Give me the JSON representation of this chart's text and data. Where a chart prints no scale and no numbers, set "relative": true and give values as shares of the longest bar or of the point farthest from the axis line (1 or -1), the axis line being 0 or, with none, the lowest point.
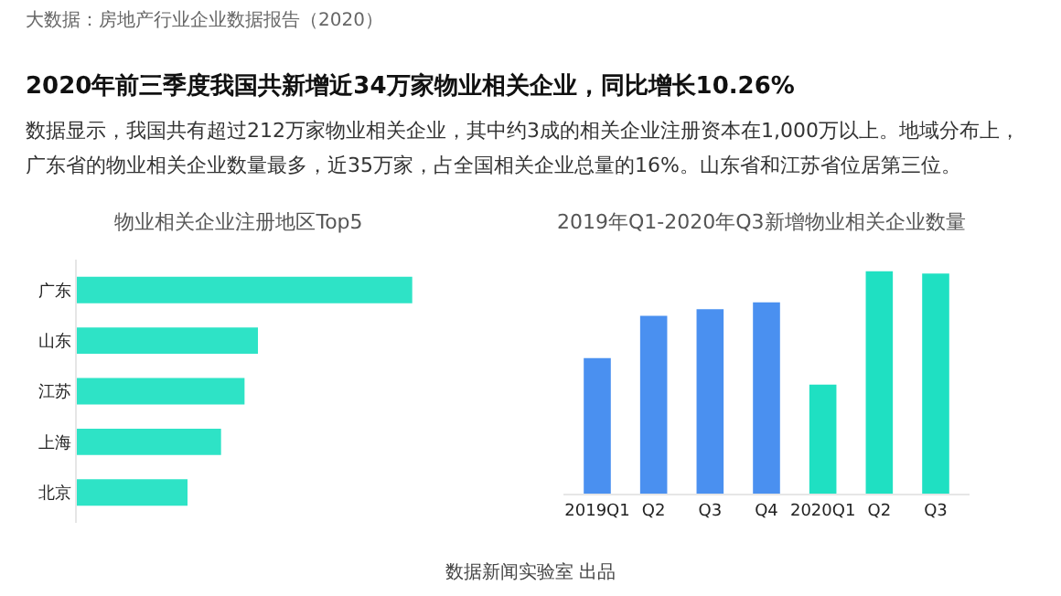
{
  "chart_data": [
    {
      "type": "bar",
      "title": "物业相关企业注册地区Top5",
      "orientation": "horizontal",
      "relative": true,
      "categories": [
        "广东",
        "山东",
        "江苏",
        "上海",
        "北京"
      ],
      "values": [
        1,
        0.54,
        0.5,
        0.43,
        0.33
      ],
      "color": "#2ee3c6",
      "grid": false,
      "legend": false,
      "annotations": [
        "大数据：房地产行业企业数据报告（2020）",
        "2020年前三季度我国共新增近34万家物业相关企业，同比增长10.26%",
        "数据显示，我国共有超过212万家物业相关企业，其中约3成的相关企业注册资本在1,000万以上。地域分布上，广东省的物业相关企业数量最多，近35万家，占全国相关企业总量的16%。山东省和江苏省位居第三位。"
      ]
    },
    {
      "type": "bar",
      "title": "2019年Q1-2020年Q3新增物业相关企业数量",
      "relative": true,
      "categories": [
        "2019Q1",
        "Q2",
        "Q3",
        "Q4",
        "2020Q1",
        "Q2",
        "Q3"
      ],
      "values": [
        0.61,
        0.8,
        0.83,
        0.86,
        0.49,
        1,
        0.99
      ],
      "colors": [
        "#4a90f0",
        "#4a90f0",
        "#4a90f0",
        "#4a90f0",
        "#1fe0c2",
        "#1fe0c2",
        "#1fe0c2"
      ],
      "grid": false,
      "legend": false,
      "annotations": [
        "数据新闻实验室 出品"
      ]
    }
  ]
}
